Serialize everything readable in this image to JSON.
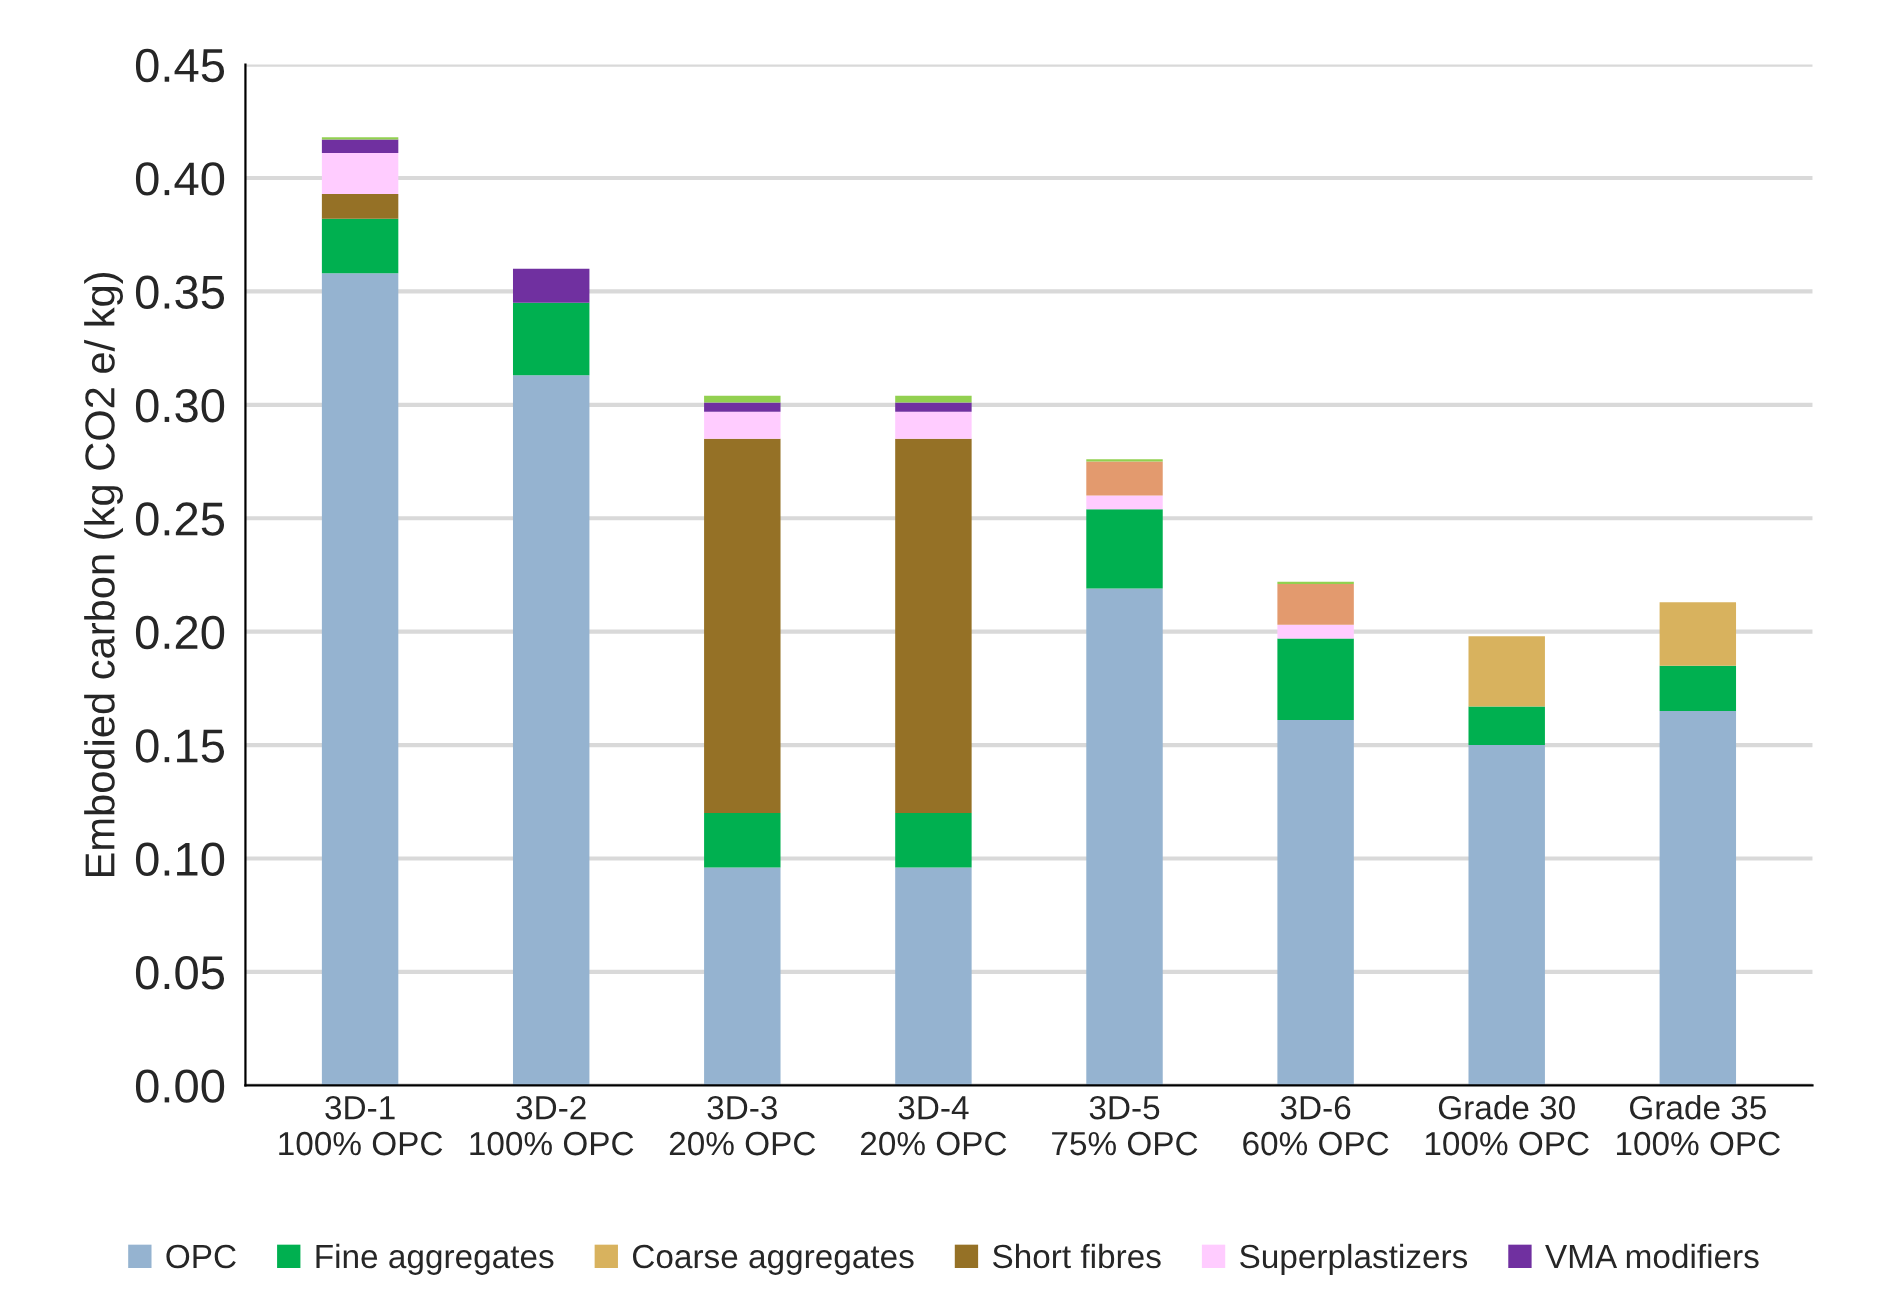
{
  "chart_data": {
    "type": "bar",
    "stacked": true,
    "ylabel": "Embodied carbon (kg CO2 e/ kg)",
    "categories": [
      "3D-1\n100% OPC",
      "3D-2\n100% OPC",
      "3D-3\n20% OPC",
      "3D-4\n20% OPC",
      "3D-5\n75% OPC",
      "3D-6\n60% OPC",
      "Grade 30\n100% OPC",
      "Grade 35\n100% OPC"
    ],
    "series": [
      {
        "name": "OPC",
        "color": "#95b3d0",
        "values": [
          0.358,
          0.313,
          0.096,
          0.096,
          0.219,
          0.161,
          0.15,
          0.165
        ]
      },
      {
        "name": "Fine aggregates",
        "color": "#00b050",
        "values": [
          0.024,
          0.032,
          0.024,
          0.024,
          0.035,
          0.036,
          0.017,
          0.02
        ]
      },
      {
        "name": "Coarse aggregates",
        "color": "#d8b25e",
        "values": [
          null,
          null,
          null,
          null,
          null,
          null,
          0.031,
          0.028
        ]
      },
      {
        "name": "Short fibres",
        "color": "#957126",
        "values": [
          0.011,
          null,
          0.165,
          0.165,
          null,
          null,
          null,
          null
        ]
      },
      {
        "name": "Superplastizers",
        "color": "#ffccff",
        "values": [
          0.018,
          null,
          0.012,
          0.012,
          0.006,
          0.006,
          null,
          null
        ]
      },
      {
        "name": "VMA modifiers",
        "color": "#7030a0",
        "values": [
          0.006,
          0.015,
          0.004,
          0.004,
          null,
          null,
          null,
          null
        ]
      },
      {
        "color": "#e39a6e",
        "values": [
          null,
          null,
          null,
          null,
          0.015,
          0.018,
          null,
          null
        ]
      },
      {
        "color": "#92d050",
        "values": [
          0.001,
          null,
          0.003,
          0.003,
          0.001,
          0.001,
          null,
          null
        ]
      }
    ],
    "ylim": [
      0,
      0.45
    ],
    "yticks": [
      {
        "value": 0,
        "label": "0.00"
      },
      {
        "value": 0.05,
        "label": "0.05"
      },
      {
        "value": 0.1,
        "label": "0.10"
      },
      {
        "value": 0.15,
        "label": "0.15"
      },
      {
        "value": 0.2,
        "label": "0.20"
      },
      {
        "value": 0.25,
        "label": "0.25"
      },
      {
        "value": 0.3,
        "label": "0.30"
      },
      {
        "value": 0.35,
        "label": "0.35"
      },
      {
        "value": 0.4,
        "label": "0.40"
      },
      {
        "value": 0.45,
        "label": "0.45"
      }
    ],
    "grid": "y",
    "legend": "bottom"
  }
}
